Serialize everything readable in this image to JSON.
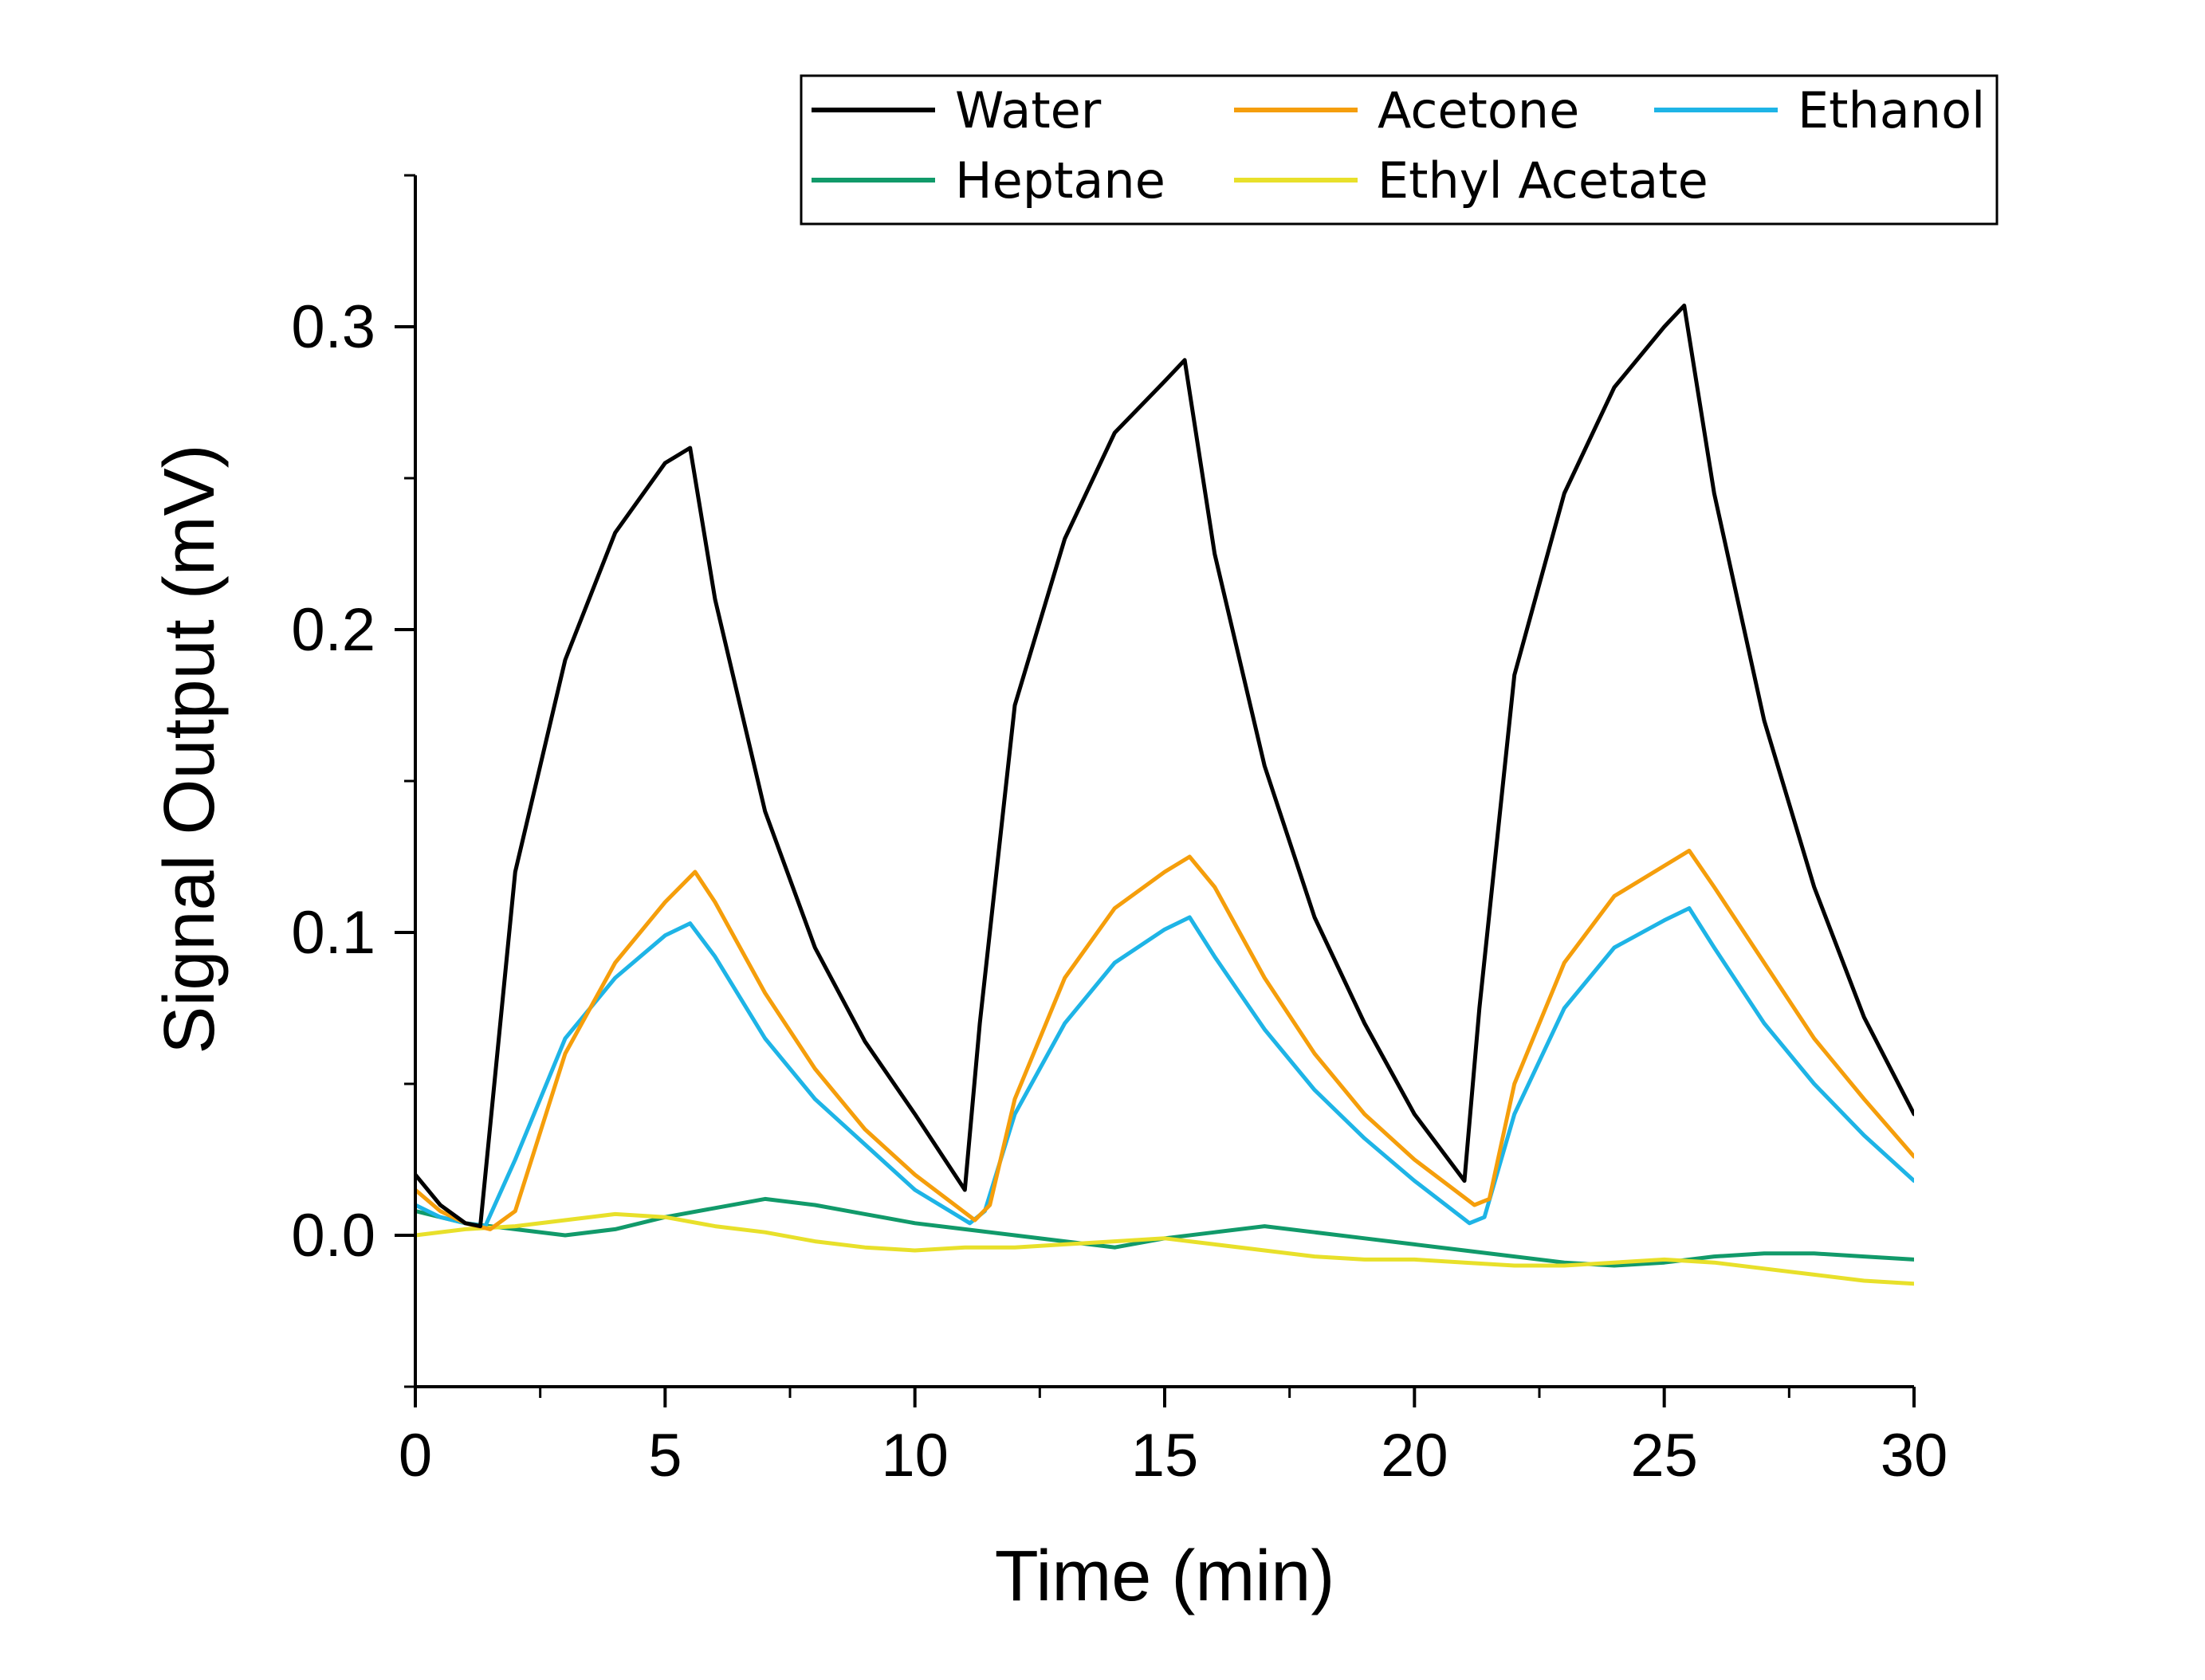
{
  "chart_data": {
    "type": "line",
    "title": "",
    "xlabel": "Time (min)",
    "ylabel": "Signal Output (mV)",
    "xlim": [
      0,
      30
    ],
    "ylim": [
      -0.05,
      0.35
    ],
    "xticks": [
      0,
      5,
      10,
      15,
      20,
      25,
      30
    ],
    "xtick_labels": [
      "0",
      "5",
      "10",
      "15",
      "20",
      "25",
      "30"
    ],
    "yticks": [
      0.0,
      0.1,
      0.2,
      0.3
    ],
    "ytick_labels": [
      "0.0",
      "0.1",
      "0.2",
      "0.3"
    ],
    "grid": false,
    "legend_position": "top-right",
    "series": [
      {
        "name": "Water",
        "color": "#000000",
        "x": [
          0,
          0.5,
          1.0,
          1.3,
          2,
          3,
          4,
          5,
          5.5,
          6,
          7,
          8,
          9,
          10,
          11.0,
          11.3,
          12,
          13,
          14,
          15,
          15.4,
          16,
          17,
          18,
          19,
          20,
          21.0,
          21.3,
          22,
          23,
          24,
          25,
          25.4,
          26,
          27,
          28,
          29,
          30
        ],
        "y": [
          0.02,
          0.01,
          0.004,
          0.003,
          0.12,
          0.19,
          0.232,
          0.255,
          0.26,
          0.21,
          0.14,
          0.095,
          0.064,
          0.04,
          0.015,
          0.07,
          0.175,
          0.23,
          0.265,
          0.282,
          0.289,
          0.225,
          0.155,
          0.105,
          0.07,
          0.04,
          0.018,
          0.075,
          0.185,
          0.245,
          0.28,
          0.3,
          0.307,
          0.245,
          0.17,
          0.115,
          0.072,
          0.04
        ]
      },
      {
        "name": "Acetone",
        "color": "#F59E0B",
        "x": [
          0,
          0.5,
          1,
          1.5,
          2,
          3,
          4,
          5,
          5.6,
          6,
          7,
          8,
          9,
          10,
          11.2,
          11.5,
          12,
          13,
          14,
          15,
          15.5,
          16,
          17,
          18,
          19,
          20,
          21.2,
          21.5,
          22,
          23,
          24,
          25,
          25.5,
          26,
          27,
          28,
          29,
          30
        ],
        "y": [
          0.015,
          0.008,
          0.004,
          0.002,
          0.008,
          0.06,
          0.09,
          0.11,
          0.12,
          0.11,
          0.08,
          0.055,
          0.035,
          0.02,
          0.005,
          0.01,
          0.045,
          0.085,
          0.108,
          0.12,
          0.125,
          0.115,
          0.085,
          0.06,
          0.04,
          0.025,
          0.01,
          0.012,
          0.05,
          0.09,
          0.112,
          0.122,
          0.127,
          0.115,
          0.09,
          0.065,
          0.045,
          0.026
        ]
      },
      {
        "name": "Ethanol",
        "color": "#1EB4E6",
        "x": [
          0,
          0.5,
          1,
          1.4,
          2,
          3,
          4,
          5,
          5.5,
          6,
          7,
          8,
          9,
          10,
          11.1,
          11.4,
          12,
          13,
          14,
          15,
          15.5,
          16,
          17,
          18,
          19,
          20,
          21.1,
          21.4,
          22,
          23,
          24,
          25,
          25.5,
          26,
          27,
          28,
          29,
          30
        ],
        "y": [
          0.01,
          0.006,
          0.004,
          0.003,
          0.025,
          0.065,
          0.085,
          0.099,
          0.103,
          0.092,
          0.065,
          0.045,
          0.03,
          0.015,
          0.004,
          0.008,
          0.04,
          0.07,
          0.09,
          0.101,
          0.105,
          0.092,
          0.068,
          0.048,
          0.032,
          0.018,
          0.004,
          0.006,
          0.04,
          0.075,
          0.095,
          0.104,
          0.108,
          0.095,
          0.07,
          0.05,
          0.033,
          0.018
        ]
      },
      {
        "name": "Heptane",
        "color": "#119A6A",
        "x": [
          0,
          1,
          2,
          3,
          4,
          5,
          6,
          7,
          8,
          9,
          10,
          11,
          12,
          13,
          14,
          15,
          16,
          17,
          18,
          19,
          20,
          21,
          22,
          23,
          24,
          25,
          26,
          27,
          28,
          29,
          30
        ],
        "y": [
          0.008,
          0.004,
          0.002,
          0.0,
          0.002,
          0.006,
          0.009,
          0.012,
          0.01,
          0.007,
          0.004,
          0.002,
          0.0,
          -0.002,
          -0.004,
          -0.001,
          0.001,
          0.003,
          0.001,
          -0.001,
          -0.003,
          -0.005,
          -0.007,
          -0.009,
          -0.01,
          -0.009,
          -0.007,
          -0.006,
          -0.006,
          -0.007,
          -0.008
        ]
      },
      {
        "name": "Ethyl Acetate",
        "color": "#E8E02A",
        "x": [
          0,
          1,
          2,
          3,
          4,
          5,
          6,
          7,
          8,
          9,
          10,
          11,
          12,
          13,
          14,
          15,
          16,
          17,
          18,
          19,
          20,
          21,
          22,
          23,
          24,
          25,
          26,
          27,
          28,
          29,
          30
        ],
        "y": [
          0.0,
          0.002,
          0.003,
          0.005,
          0.007,
          0.006,
          0.003,
          0.001,
          -0.002,
          -0.004,
          -0.005,
          -0.004,
          -0.004,
          -0.003,
          -0.002,
          -0.001,
          -0.003,
          -0.005,
          -0.007,
          -0.008,
          -0.008,
          -0.009,
          -0.01,
          -0.01,
          -0.009,
          -0.008,
          -0.009,
          -0.011,
          -0.013,
          -0.015,
          -0.016
        ]
      }
    ]
  }
}
